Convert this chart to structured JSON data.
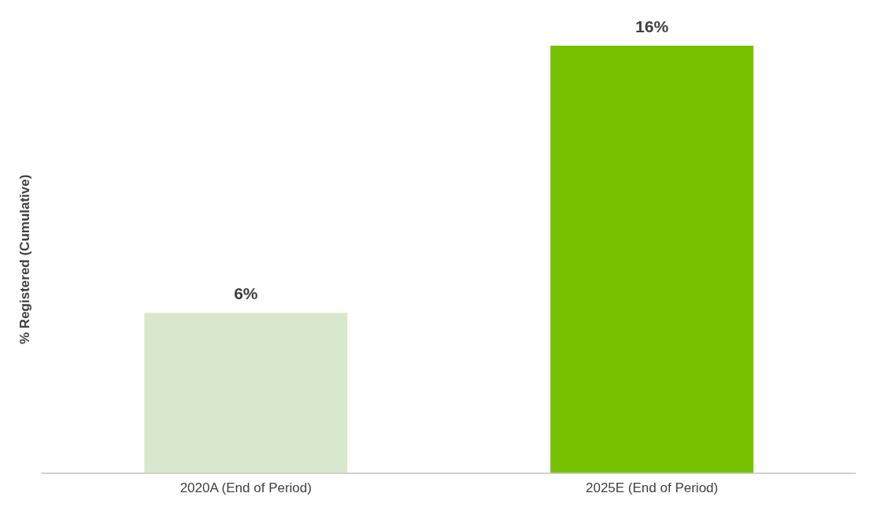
{
  "chart_data": {
    "type": "bar",
    "ylabel": "% Registered (Cumulative)",
    "categories": [
      "2020A (End of Period)",
      "2025E (End of Period)"
    ],
    "values": [
      6,
      16
    ],
    "colors": [
      "#d9e8cc",
      "#77c000"
    ],
    "value_labels": [
      "6%",
      "16%"
    ],
    "grid": false,
    "legend": false
  }
}
